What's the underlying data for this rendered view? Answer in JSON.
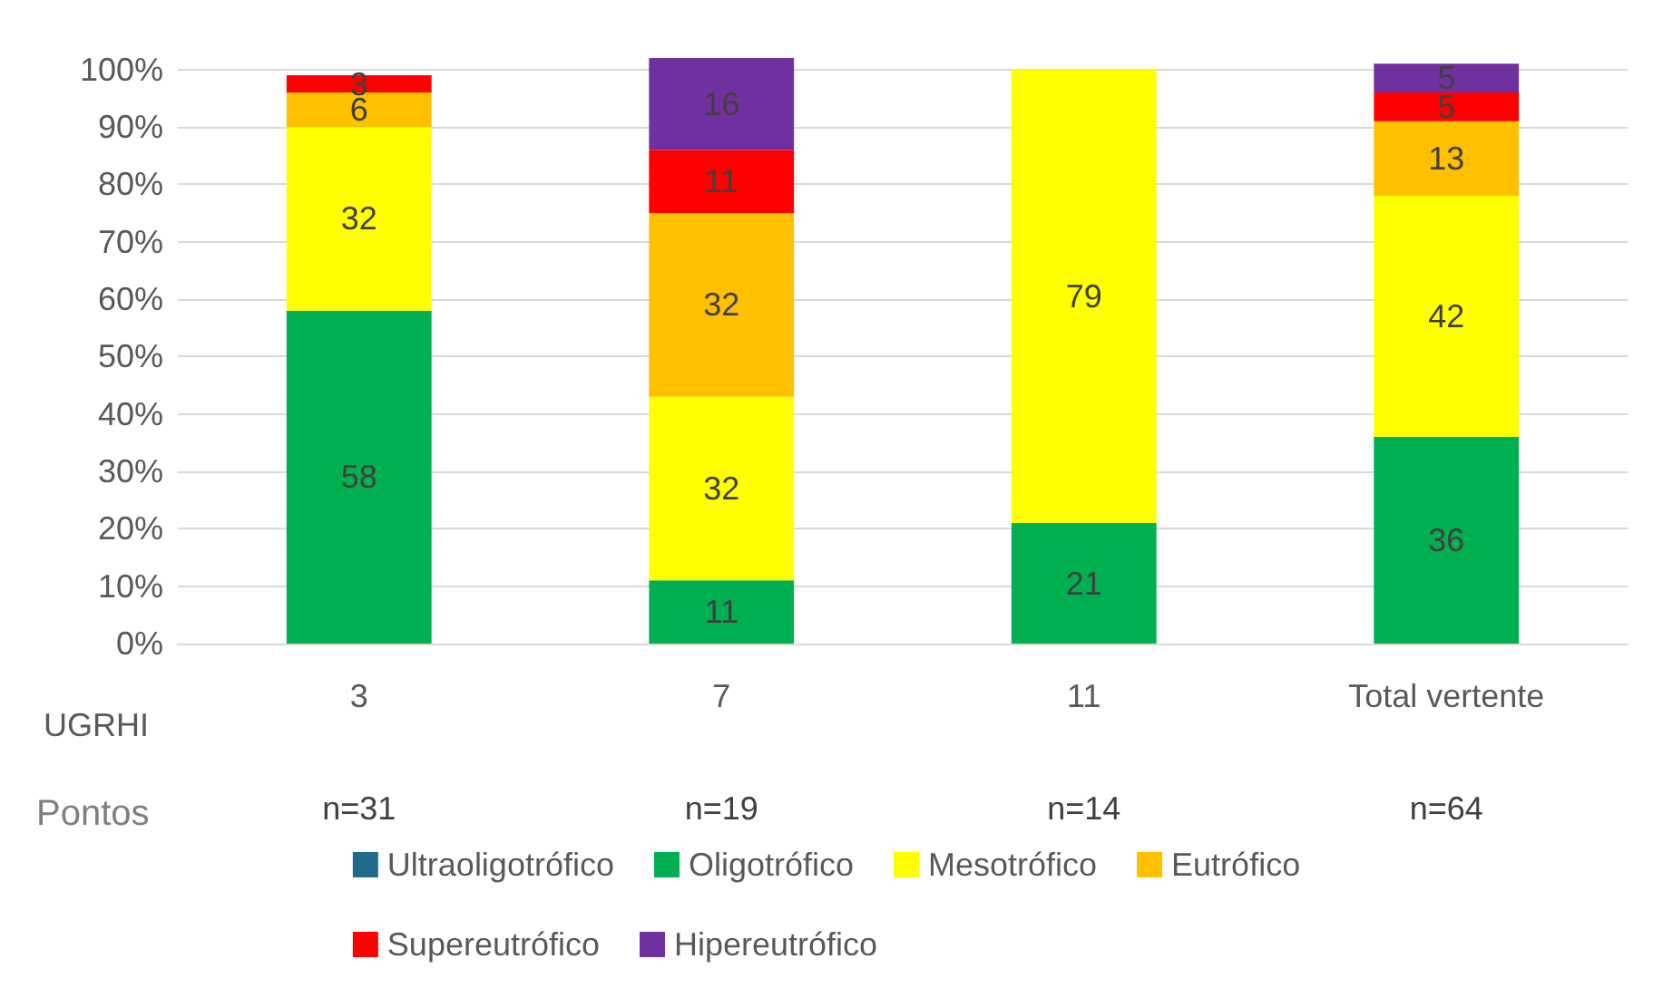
{
  "chart_data": {
    "type": "bar",
    "stacked": true,
    "xlabel": "UGRHI",
    "categories": [
      "3",
      "7",
      "11",
      "Total vertente"
    ],
    "series": [
      {
        "name": "Ultraoligotrófico",
        "color": "#1f6b8a",
        "values": [
          null,
          null,
          null,
          null
        ]
      },
      {
        "name": "Oligotrófico",
        "color": "#00b050",
        "values": [
          58,
          11,
          21,
          36
        ]
      },
      {
        "name": "Mesotrófico",
        "color": "#ffff00",
        "values": [
          32,
          32,
          79,
          42
        ]
      },
      {
        "name": "Eutrófico",
        "color": "#ffc000",
        "values": [
          6,
          32,
          null,
          13
        ]
      },
      {
        "name": "Supereutrófico",
        "color": "#ff0000",
        "values": [
          3,
          11,
          null,
          5
        ]
      },
      {
        "name": "Hipereutrófico",
        "color": "#7030a0",
        "values": [
          null,
          16,
          null,
          5
        ]
      }
    ],
    "ylim": [
      0,
      102
    ],
    "yticks": [
      {
        "value": 0,
        "label": "0%"
      },
      {
        "value": 10,
        "label": "10%"
      },
      {
        "value": 20,
        "label": "20%"
      },
      {
        "value": 30,
        "label": "30%"
      },
      {
        "value": 40,
        "label": "40%"
      },
      {
        "value": 50,
        "label": "50%"
      },
      {
        "value": 60,
        "label": "60%"
      },
      {
        "value": 70,
        "label": "70%"
      },
      {
        "value": 80,
        "label": "80%"
      },
      {
        "value": 90,
        "label": "90%"
      },
      {
        "value": 100,
        "label": "100%"
      }
    ],
    "grid": "y",
    "legend": "bottom",
    "data_labels": true,
    "annotations": [
      "Pontos",
      "n=31",
      "n=19",
      "n=14",
      "n=64"
    ]
  }
}
